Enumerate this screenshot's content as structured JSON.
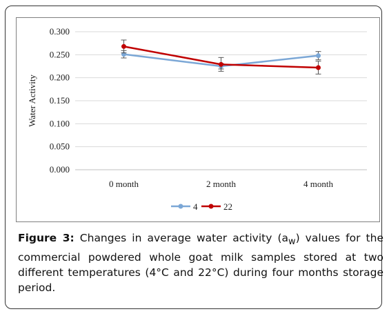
{
  "chart_data": {
    "type": "line",
    "categories": [
      "0 month",
      "2 month",
      "4 month"
    ],
    "ylabel": "Water Activity",
    "xlabel": "",
    "ylim": [
      0,
      0.3
    ],
    "yticks": [
      "0.000",
      "0.050",
      "0.100",
      "0.150",
      "0.200",
      "0.250",
      "0.300"
    ],
    "grid": true,
    "legend_position": "bottom",
    "series": [
      {
        "name": "4",
        "values": [
          0.251,
          0.225,
          0.248
        ],
        "errors": [
          0.008,
          0.006,
          0.009
        ],
        "color": "#7ba7d6"
      },
      {
        "name": "22",
        "values": [
          0.268,
          0.229,
          0.222
        ],
        "errors": [
          0.014,
          0.015,
          0.014
        ],
        "color": "#c00000"
      }
    ]
  },
  "caption": {
    "label": "Figure 3:",
    "text_before_sub": " Changes in average water activity (a",
    "subscript": "w",
    "text_after_sub": ") values for the commercial powdered whole goat milk samples stored at two different temperatures (4°C and 22°C) during four months storage period."
  }
}
